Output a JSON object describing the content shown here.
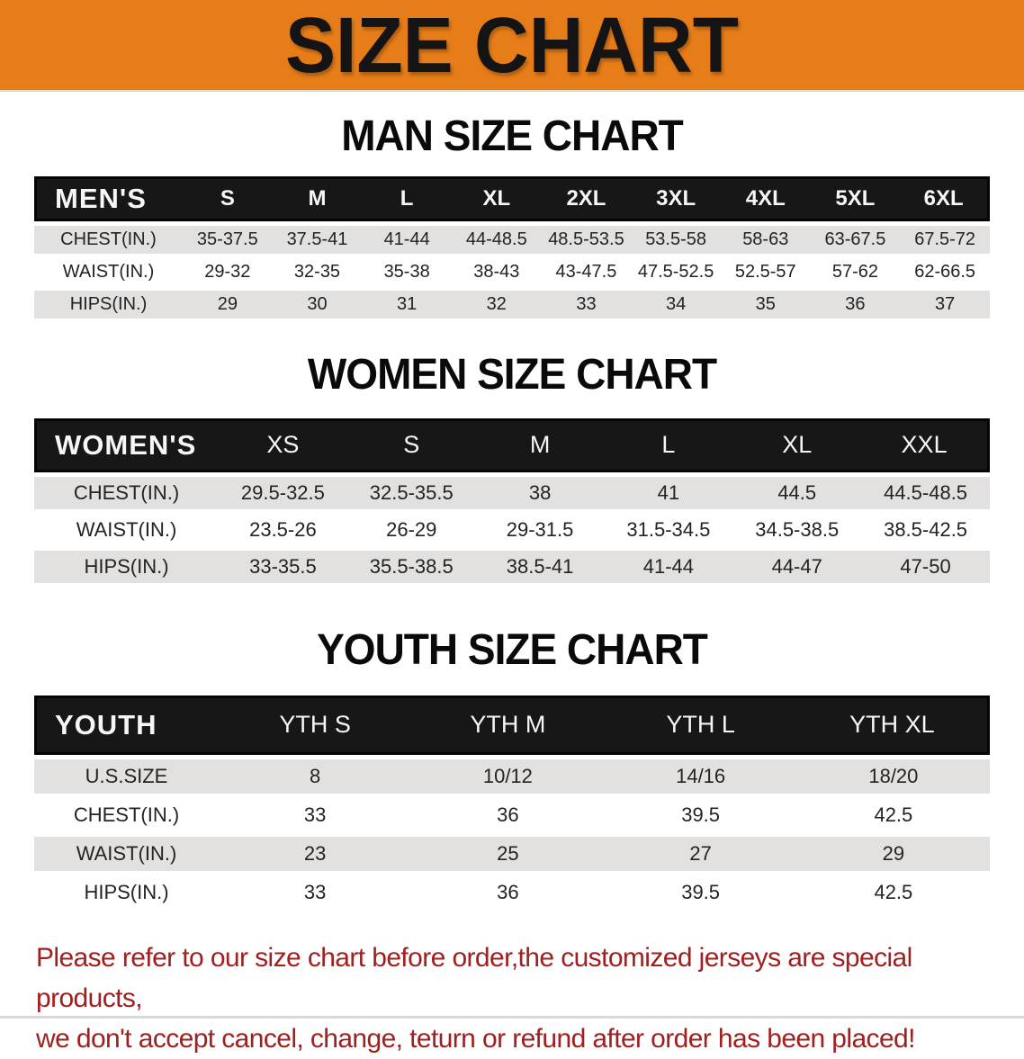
{
  "banner": {
    "title": "SIZE CHART"
  },
  "sections": {
    "men": {
      "title": "MAN SIZE CHART"
    },
    "women": {
      "title": "WOMEN SIZE CHART"
    },
    "youth": {
      "title": "YOUTH SIZE CHART"
    }
  },
  "tables": {
    "men": {
      "header_label": "MEN'S",
      "sizes": [
        "S",
        "M",
        "L",
        "XL",
        "2XL",
        "3XL",
        "4XL",
        "5XL",
        "6XL"
      ],
      "rows": [
        {
          "label": "CHEST(IN.)",
          "values": [
            "35-37.5",
            "37.5-41",
            "41-44",
            "44-48.5",
            "48.5-53.5",
            "53.5-58",
            "58-63",
            "63-67.5",
            "67.5-72"
          ]
        },
        {
          "label": "WAIST(IN.)",
          "values": [
            "29-32",
            "32-35",
            "35-38",
            "38-43",
            "43-47.5",
            "47.5-52.5",
            "52.5-57",
            "57-62",
            "62-66.5"
          ]
        },
        {
          "label": "HIPS(IN.)",
          "values": [
            "29",
            "30",
            "31",
            "32",
            "33",
            "34",
            "35",
            "36",
            "37"
          ]
        }
      ]
    },
    "women": {
      "header_label": "WOMEN'S",
      "sizes": [
        "XS",
        "S",
        "M",
        "L",
        "XL",
        "XXL"
      ],
      "rows": [
        {
          "label": "CHEST(IN.)",
          "values": [
            "29.5-32.5",
            "32.5-35.5",
            "38",
            "41",
            "44.5",
            "44.5-48.5"
          ]
        },
        {
          "label": "WAIST(IN.)",
          "values": [
            "23.5-26",
            "26-29",
            "29-31.5",
            "31.5-34.5",
            "34.5-38.5",
            "38.5-42.5"
          ]
        },
        {
          "label": "HIPS(IN.)",
          "values": [
            "33-35.5",
            "35.5-38.5",
            "38.5-41",
            "41-44",
            "44-47",
            "47-50"
          ]
        }
      ]
    },
    "youth": {
      "header_label": "YOUTH",
      "sizes": [
        "YTH S",
        "YTH M",
        "YTH L",
        "YTH XL"
      ],
      "rows": [
        {
          "label": "U.S.SIZE",
          "values": [
            "8",
            "10/12",
            "14/16",
            "18/20"
          ]
        },
        {
          "label": "CHEST(IN.)",
          "values": [
            "33",
            "36",
            "39.5",
            "42.5"
          ]
        },
        {
          "label": "WAIST(IN.)",
          "values": [
            "23",
            "25",
            "27",
            "29"
          ]
        },
        {
          "label": "HIPS(IN.)",
          "values": [
            "33",
            "36",
            "39.5",
            "42.5"
          ]
        }
      ]
    }
  },
  "disclaimer": {
    "line1": "Please refer to our size chart before order,the customized jerseys are special products,",
    "line2": "we don't accept cancel, change, teturn or refund after order has been placed!"
  },
  "colors": {
    "banner_orange": "#e67d19",
    "header_bar_black": "#171717",
    "stripe_gray": "#e2e1df",
    "disclaimer_red": "#a01f1f"
  }
}
